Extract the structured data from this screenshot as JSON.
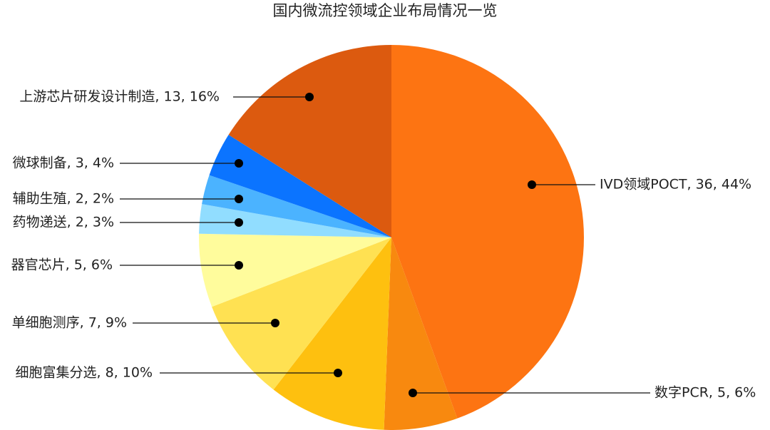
{
  "chart_data": {
    "type": "pie",
    "title": "国内微流控领域企业布局情况一览",
    "values": [
      36,
      5,
      8,
      7,
      5,
      2,
      2,
      3,
      13
    ],
    "value_labels": [
      "IVD领域POCT, 36, 44%",
      "数字PCR, 5, 6%",
      "细胞富集分选, 8, 10%",
      "单细胞测序, 7, 9%",
      "器官芯片, 5, 6%",
      "药物递送, 2, 3%",
      "辅助生殖, 2, 2%",
      "微球制备, 3, 4%",
      "上游芯片研发设计制造, 13, 16%"
    ],
    "colors": [
      "#fd7412",
      "#f8890f",
      "#fec00f",
      "#ffe152",
      "#fffc9c",
      "#91ddff",
      "#4bb3ff",
      "#0b74ff",
      "#dc5a0f"
    ]
  }
}
